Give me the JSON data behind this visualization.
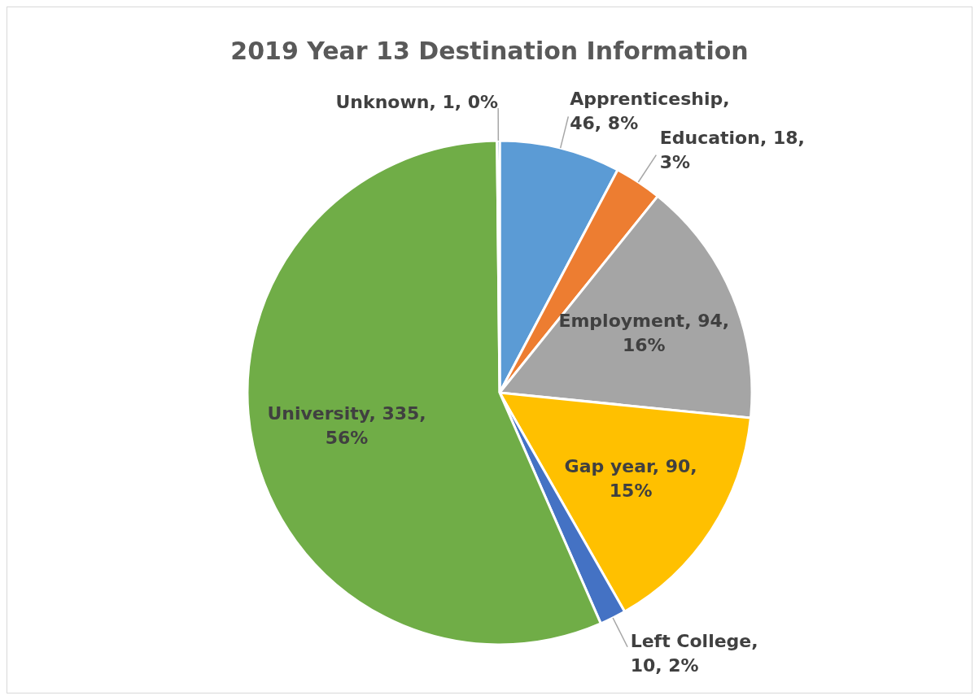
{
  "chart_data": {
    "type": "pie",
    "title": "2019 Year 13 Destination Information",
    "categories": [
      "Apprenticeship",
      "Education",
      "Employment",
      "Gap year",
      "Left College",
      "University",
      "Unknown"
    ],
    "values": [
      46,
      18,
      94,
      90,
      10,
      335,
      1
    ],
    "colors": [
      "#5b9bd5",
      "#ed7d31",
      "#a5a5a5",
      "#ffc000",
      "#4472c4",
      "#70ad47",
      "#255e91"
    ],
    "value_labels": [
      ", 46, 8%",
      ", 18, 3%",
      ", 94, 16%",
      ", 90, 15%",
      ", 10, 2%",
      ", 335, 56%",
      ", 1, 0%"
    ]
  }
}
